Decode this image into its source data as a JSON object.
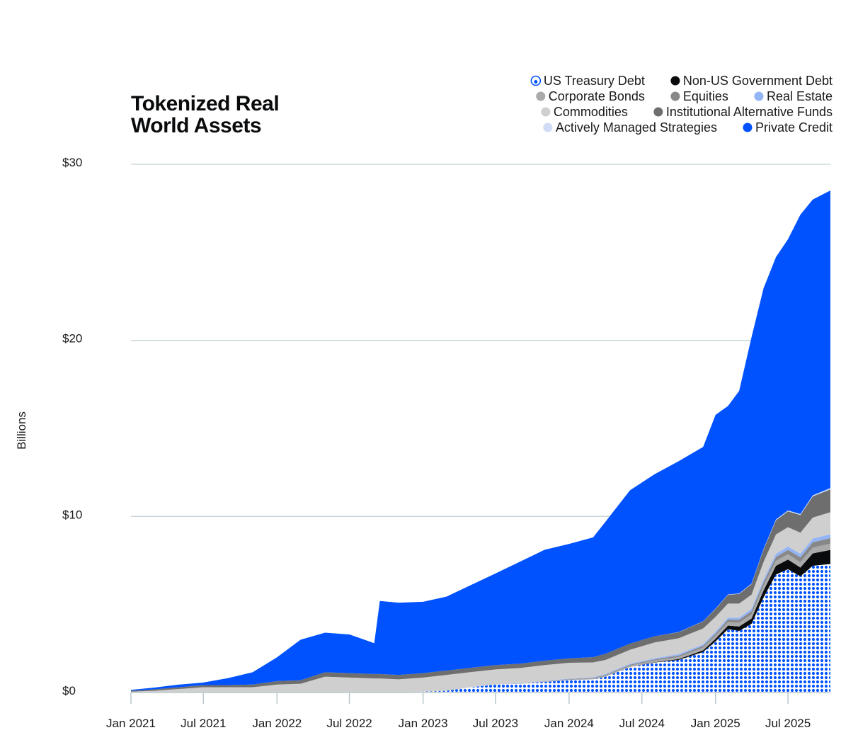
{
  "title_lines": [
    "Tokenized Real",
    "World Assets"
  ],
  "chart_data": {
    "type": "area",
    "title": "Tokenized Real World Assets",
    "xlabel": "",
    "ylabel": "Billions",
    "ylim": [
      0,
      30
    ],
    "yticks": [
      0,
      10,
      20,
      30
    ],
    "ytick_labels": [
      "$0",
      "$10",
      "$20",
      "$30"
    ],
    "xlim": [
      "2021-01-01",
      "2025-10-15"
    ],
    "xticks": [
      "2021-01-01",
      "2021-07-01",
      "2022-01-01",
      "2022-07-01",
      "2023-01-01",
      "2023-07-01",
      "2024-01-01",
      "2024-07-01",
      "2025-01-01",
      "2025-07-01"
    ],
    "xtick_labels": [
      "Jan 2021",
      "Jul 2021",
      "Jan 2022",
      "Jul 2022",
      "Jan 2023",
      "Jul 2023",
      "Jan 2024",
      "Jul 2024",
      "Jan 2025",
      "Jul 2025"
    ],
    "grid": "horizontal",
    "legend_position": "top-right",
    "stacked": true,
    "x": [
      "2021-01-01",
      "2021-03-01",
      "2021-05-01",
      "2021-07-01",
      "2021-09-01",
      "2021-11-01",
      "2022-01-01",
      "2022-03-01",
      "2022-05-01",
      "2022-07-01",
      "2022-09-01",
      "2022-09-15",
      "2022-11-01",
      "2023-01-01",
      "2023-03-01",
      "2023-05-01",
      "2023-07-01",
      "2023-09-01",
      "2023-11-01",
      "2024-01-01",
      "2024-03-01",
      "2024-04-01",
      "2024-06-01",
      "2024-08-01",
      "2024-10-01",
      "2024-12-01",
      "2025-01-01",
      "2025-02-01",
      "2025-03-01",
      "2025-04-01",
      "2025-05-01",
      "2025-06-01",
      "2025-07-01",
      "2025-08-01",
      "2025-09-01",
      "2025-10-15"
    ],
    "series": [
      {
        "name": "US Treasury Debt",
        "color": "#0052ff",
        "pattern": "dots",
        "values": [
          0,
          0,
          0,
          0,
          0,
          0,
          0,
          0,
          0,
          0,
          0,
          0,
          0,
          0.05,
          0.1,
          0.3,
          0.45,
          0.5,
          0.6,
          0.7,
          0.75,
          0.9,
          1.45,
          1.7,
          1.85,
          2.3,
          2.9,
          3.6,
          3.5,
          3.9,
          5.4,
          6.7,
          7.0,
          6.6,
          7.2,
          7.3
        ]
      },
      {
        "name": "Non-US Government Debt",
        "color": "#0a0b0d",
        "values": [
          0,
          0,
          0,
          0,
          0,
          0,
          0,
          0,
          0,
          0,
          0,
          0,
          0,
          0,
          0,
          0,
          0,
          0,
          0,
          0,
          0,
          0,
          0,
          0.02,
          0.05,
          0.1,
          0.15,
          0.2,
          0.25,
          0.3,
          0.4,
          0.5,
          0.55,
          0.5,
          0.7,
          0.8
        ]
      },
      {
        "name": "Corporate Bonds",
        "color": "#aaaaaa",
        "values": [
          0,
          0,
          0,
          0,
          0,
          0,
          0,
          0,
          0,
          0,
          0,
          0,
          0,
          0,
          0,
          0,
          0,
          0.02,
          0.03,
          0.04,
          0.05,
          0.07,
          0.08,
          0.1,
          0.12,
          0.15,
          0.18,
          0.2,
          0.22,
          0.24,
          0.26,
          0.28,
          0.3,
          0.3,
          0.33,
          0.35
        ]
      },
      {
        "name": "Equities",
        "color": "#888888",
        "values": [
          0,
          0,
          0,
          0,
          0,
          0,
          0,
          0,
          0,
          0,
          0,
          0,
          0,
          0,
          0,
          0,
          0,
          0,
          0.01,
          0.02,
          0.03,
          0.04,
          0.05,
          0.06,
          0.08,
          0.1,
          0.12,
          0.14,
          0.16,
          0.18,
          0.2,
          0.22,
          0.25,
          0.28,
          0.3,
          0.32
        ]
      },
      {
        "name": "Real Estate",
        "color": "#93b4f5",
        "values": [
          0,
          0,
          0,
          0,
          0,
          0,
          0,
          0,
          0,
          0,
          0,
          0,
          0,
          0,
          0,
          0.01,
          0.01,
          0.02,
          0.02,
          0.03,
          0.03,
          0.04,
          0.05,
          0.06,
          0.08,
          0.09,
          0.1,
          0.11,
          0.12,
          0.14,
          0.16,
          0.18,
          0.19,
          0.2,
          0.21,
          0.22
        ]
      },
      {
        "name": "Commodities",
        "color": "#cfcfcf",
        "values": [
          0.05,
          0.1,
          0.2,
          0.3,
          0.3,
          0.3,
          0.45,
          0.5,
          0.9,
          0.85,
          0.8,
          0.8,
          0.75,
          0.8,
          0.9,
          0.85,
          0.85,
          0.85,
          0.9,
          0.9,
          0.85,
          0.8,
          0.8,
          0.9,
          0.9,
          0.9,
          0.85,
          0.8,
          0.8,
          0.8,
          1.0,
          1.1,
          1.1,
          1.2,
          1.2,
          1.25
        ]
      },
      {
        "name": "Institutional Alternative Funds",
        "color": "#6e6e6e",
        "values": [
          0.05,
          0.08,
          0.1,
          0.12,
          0.12,
          0.15,
          0.2,
          0.2,
          0.25,
          0.25,
          0.25,
          0.25,
          0.25,
          0.25,
          0.25,
          0.25,
          0.25,
          0.25,
          0.25,
          0.25,
          0.3,
          0.35,
          0.35,
          0.35,
          0.35,
          0.4,
          0.45,
          0.5,
          0.55,
          0.6,
          0.7,
          0.8,
          0.9,
          1.0,
          1.2,
          1.3
        ]
      },
      {
        "name": "Actively Managed Strategies",
        "color": "#d0dcf5",
        "values": [
          0,
          0,
          0,
          0,
          0,
          0,
          0,
          0,
          0,
          0,
          0,
          0,
          0,
          0,
          0,
          0,
          0,
          0,
          0,
          0,
          0,
          0,
          0,
          0,
          0.01,
          0.01,
          0.02,
          0.02,
          0.03,
          0.03,
          0.04,
          0.05,
          0.05,
          0.06,
          0.06,
          0.07
        ]
      },
      {
        "name": "Private Credit",
        "color": "#0052ff",
        "values": [
          0.05,
          0.1,
          0.15,
          0.15,
          0.4,
          0.7,
          1.35,
          2.3,
          2.25,
          2.2,
          1.75,
          4.15,
          4.1,
          4.05,
          4.2,
          4.7,
          5.2,
          5.8,
          6.3,
          6.5,
          6.8,
          7.5,
          8.7,
          9.2,
          9.7,
          9.9,
          11.0,
          10.7,
          11.5,
          14.0,
          14.8,
          14.9,
          15.4,
          17.0,
          16.8,
          16.9
        ]
      }
    ]
  },
  "legend": {
    "rows": [
      [
        {
          "label": "US Treasury Debt",
          "color": "#0052ff",
          "style": "dots"
        },
        {
          "label": "Non-US Government Debt",
          "color": "#0a0b0d",
          "style": "solid"
        }
      ],
      [
        {
          "label": "Corporate Bonds",
          "color": "#aaaaaa",
          "style": "solid"
        },
        {
          "label": "Equities",
          "color": "#888888",
          "style": "solid"
        },
        {
          "label": "Real Estate",
          "color": "#93b4f5",
          "style": "solid"
        }
      ],
      [
        {
          "label": "Commodities",
          "color": "#cfcfcf",
          "style": "solid"
        },
        {
          "label": "Institutional Alternative Funds",
          "color": "#6e6e6e",
          "style": "solid"
        }
      ],
      [
        {
          "label": "Actively Managed Strategies",
          "color": "#d0dcf5",
          "style": "solid"
        },
        {
          "label": "Private Credit",
          "color": "#0052ff",
          "style": "solid"
        }
      ]
    ]
  },
  "colors": {
    "brand_blue": "#0052ff",
    "gridline": "#c6d3d6",
    "axis": "#b9c8cc"
  }
}
